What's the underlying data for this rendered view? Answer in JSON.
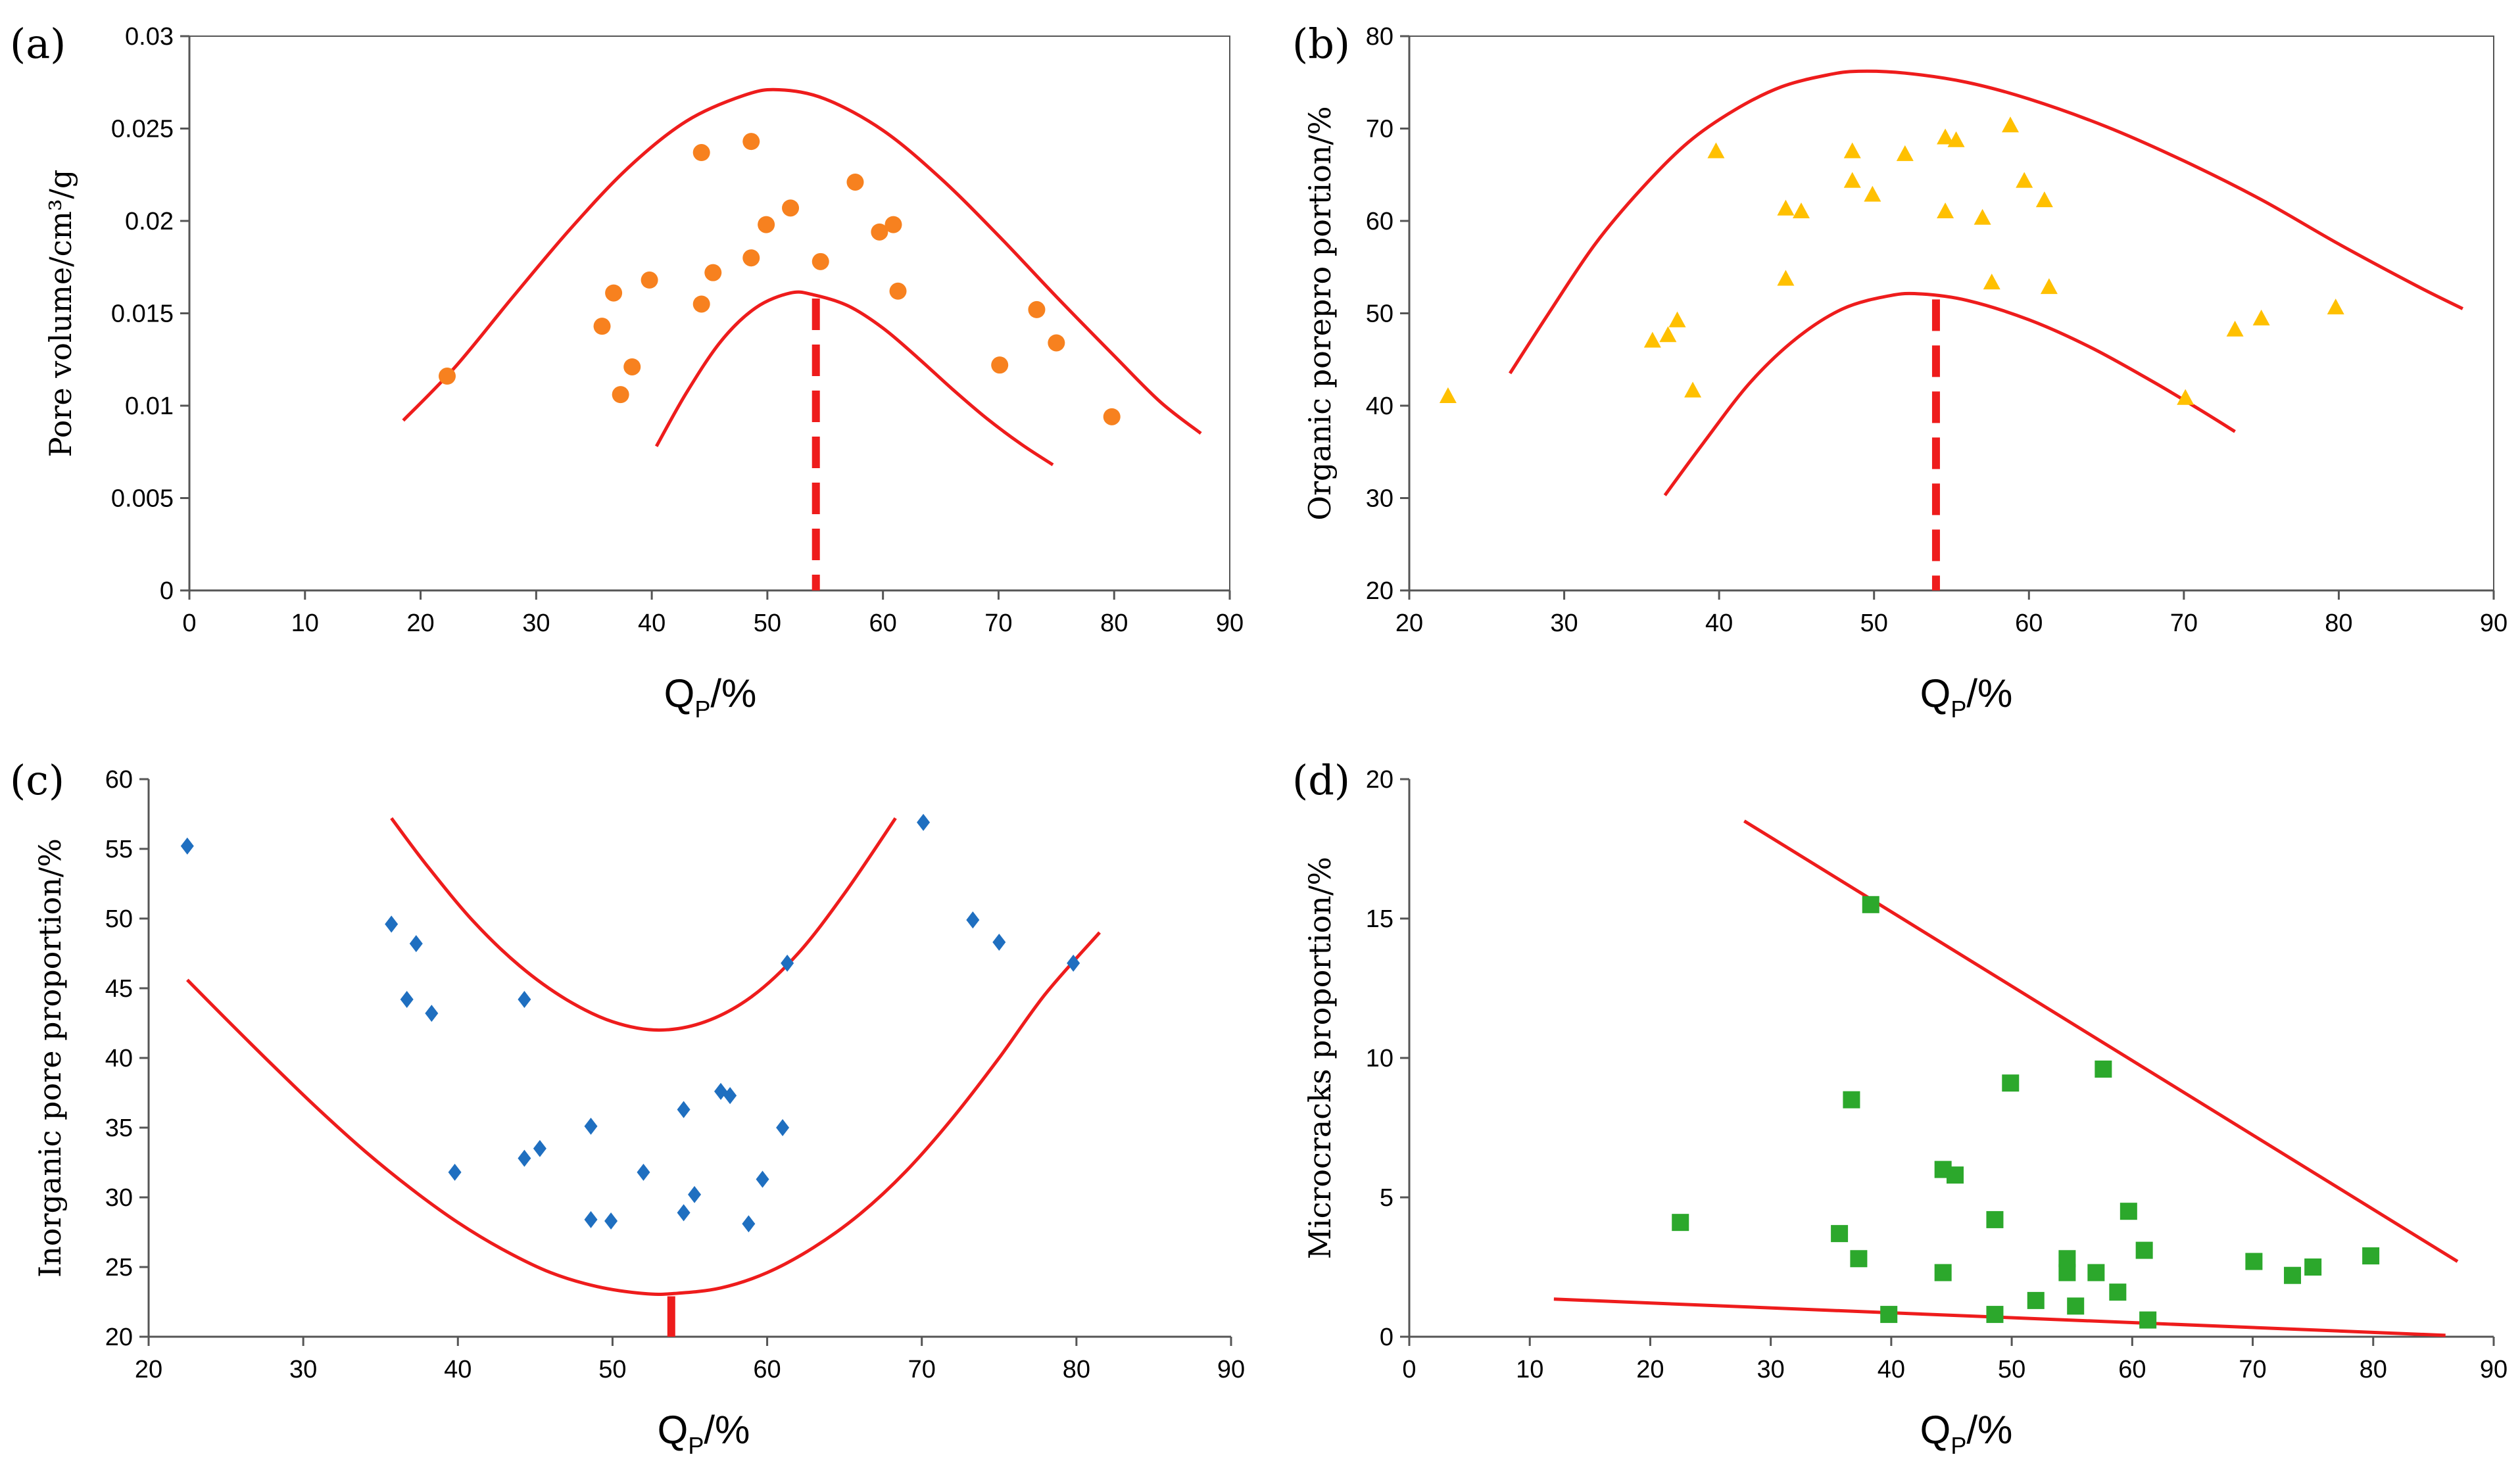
{
  "chart_data": [
    {
      "id": "a",
      "type": "scatter",
      "panel_label": "(a)",
      "ylabel": "Pore volume/cm³/g",
      "xlabel_main": "Q",
      "xlabel_sub": "P",
      "xlabel_unit": "/%",
      "xlim": [
        0,
        90
      ],
      "ylim": [
        0,
        0.03
      ],
      "xticks": [
        0,
        10,
        20,
        30,
        40,
        50,
        60,
        70,
        80,
        90
      ],
      "xtick_labels": [
        "0",
        "10",
        "20",
        "30",
        "40",
        "50",
        "60",
        "70",
        "80",
        "90"
      ],
      "yticks": [
        0,
        0.005,
        0.01,
        0.015,
        0.02,
        0.025,
        0.03
      ],
      "ytick_labels": [
        "0",
        "0.005",
        "0.01",
        "0.015",
        "0.02",
        "0.025",
        "0.03"
      ],
      "marker": "circle",
      "color": "#f7811f",
      "points": [
        [
          22.3,
          0.0116
        ],
        [
          35.7,
          0.0143
        ],
        [
          36.7,
          0.0161
        ],
        [
          37.3,
          0.0106
        ],
        [
          38.3,
          0.0121
        ],
        [
          39.8,
          0.0168
        ],
        [
          44.3,
          0.0237
        ],
        [
          44.3,
          0.0155
        ],
        [
          45.3,
          0.0172
        ],
        [
          48.6,
          0.018
        ],
        [
          48.6,
          0.0243
        ],
        [
          49.9,
          0.0198
        ],
        [
          52.0,
          0.0207
        ],
        [
          54.6,
          0.0178
        ],
        [
          57.6,
          0.0221
        ],
        [
          59.7,
          0.0194
        ],
        [
          60.9,
          0.0198
        ],
        [
          61.3,
          0.0162
        ],
        [
          70.1,
          0.0122
        ],
        [
          73.3,
          0.0152
        ],
        [
          75.0,
          0.0134
        ],
        [
          79.8,
          0.0094
        ]
      ],
      "envelope_upper": [
        [
          18.5,
          0.0092
        ],
        [
          23,
          0.0121
        ],
        [
          28,
          0.0159
        ],
        [
          33,
          0.0196
        ],
        [
          38,
          0.0229
        ],
        [
          43,
          0.0254
        ],
        [
          48,
          0.0268
        ],
        [
          51,
          0.0271
        ],
        [
          55,
          0.0266
        ],
        [
          60,
          0.0249
        ],
        [
          65,
          0.0223
        ],
        [
          70,
          0.0192
        ],
        [
          75,
          0.0159
        ],
        [
          80,
          0.0127
        ],
        [
          84,
          0.0102
        ],
        [
          87.5,
          0.0085
        ]
      ],
      "envelope_lower": [
        [
          40.4,
          0.0078
        ],
        [
          43,
          0.0107
        ],
        [
          46,
          0.0135
        ],
        [
          49,
          0.0153
        ],
        [
          52,
          0.0161
        ],
        [
          54,
          0.016
        ],
        [
          57,
          0.0154
        ],
        [
          60,
          0.0142
        ],
        [
          63,
          0.0126
        ],
        [
          66,
          0.0109
        ],
        [
          69,
          0.0093
        ],
        [
          72,
          0.0079
        ],
        [
          74.7,
          0.0068
        ]
      ],
      "optimum_x": 54.2,
      "optimum_y_range": [
        0,
        0.0158
      ],
      "optimum_style": "dashed"
    },
    {
      "id": "b",
      "type": "scatter",
      "panel_label": "(b)",
      "ylabel": "Organic porepro portion/%",
      "xlabel_main": "Q",
      "xlabel_sub": "P",
      "xlabel_unit": "/%",
      "xlim": [
        20,
        90
      ],
      "ylim": [
        20,
        80
      ],
      "xticks": [
        20,
        30,
        40,
        50,
        60,
        70,
        80,
        90
      ],
      "xtick_labels": [
        "20",
        "30",
        "40",
        "50",
        "60",
        "70",
        "80",
        "90"
      ],
      "yticks": [
        20,
        30,
        40,
        50,
        60,
        70,
        80
      ],
      "ytick_labels": [
        "20",
        "30",
        "40",
        "50",
        "60",
        "70",
        "80"
      ],
      "marker": "triangle",
      "color": "#ffc000",
      "points": [
        [
          22.5,
          41
        ],
        [
          35.7,
          47
        ],
        [
          36.7,
          47.6
        ],
        [
          37.3,
          49.2
        ],
        [
          38.3,
          41.6
        ],
        [
          39.8,
          67.5
        ],
        [
          44.3,
          61.3
        ],
        [
          44.3,
          53.7
        ],
        [
          45.3,
          61
        ],
        [
          48.6,
          67.5
        ],
        [
          48.6,
          64.3
        ],
        [
          49.9,
          62.8
        ],
        [
          52.0,
          67.2
        ],
        [
          54.6,
          69
        ],
        [
          55.3,
          68.7
        ],
        [
          54.6,
          61
        ],
        [
          57.0,
          60.3
        ],
        [
          57.6,
          53.3
        ],
        [
          58.8,
          70.3
        ],
        [
          59.7,
          64.3
        ],
        [
          61.0,
          62.2
        ],
        [
          61.3,
          52.8
        ],
        [
          70.1,
          40.8
        ],
        [
          73.3,
          48.2
        ],
        [
          75.0,
          49.4
        ],
        [
          79.8,
          50.6
        ]
      ],
      "envelope_upper": [
        [
          26.5,
          43.5
        ],
        [
          29,
          50
        ],
        [
          32,
          57.5
        ],
        [
          35,
          63.5
        ],
        [
          38,
          68.5
        ],
        [
          41,
          72
        ],
        [
          44,
          74.5
        ],
        [
          47,
          75.8
        ],
        [
          49,
          76.2
        ],
        [
          52,
          76
        ],
        [
          56,
          75
        ],
        [
          60,
          73.2
        ],
        [
          65,
          70.2
        ],
        [
          70,
          66.5
        ],
        [
          75,
          62.3
        ],
        [
          80,
          57.5
        ],
        [
          85,
          53
        ],
        [
          88,
          50.5
        ]
      ],
      "envelope_lower": [
        [
          36.5,
          30.3
        ],
        [
          39,
          36
        ],
        [
          42,
          42.5
        ],
        [
          45,
          47.3
        ],
        [
          48,
          50.5
        ],
        [
          51,
          51.9
        ],
        [
          53,
          52.1
        ],
        [
          56,
          51.4
        ],
        [
          60,
          49.3
        ],
        [
          64,
          46.3
        ],
        [
          68,
          42.6
        ],
        [
          71,
          39.6
        ],
        [
          73.3,
          37.2
        ]
      ],
      "optimum_x": 54,
      "optimum_y_range": [
        20,
        51.5
      ],
      "optimum_style": "dashed"
    },
    {
      "id": "c",
      "type": "scatter",
      "panel_label": "(c)",
      "ylabel": "Inorganic pore proportion/%",
      "xlabel_main": "Q",
      "xlabel_sub": "P",
      "xlabel_unit": "/%",
      "xlim": [
        20,
        90
      ],
      "ylim": [
        20,
        60
      ],
      "xticks": [
        20,
        30,
        40,
        50,
        60,
        70,
        80,
        90
      ],
      "xtick_labels": [
        "20",
        "30",
        "40",
        "50",
        "60",
        "70",
        "80",
        "90"
      ],
      "yticks": [
        20,
        25,
        30,
        35,
        40,
        45,
        50,
        55,
        60
      ],
      "ytick_labels": [
        "20",
        "25",
        "30",
        "35",
        "40",
        "45",
        "50",
        "55",
        "60"
      ],
      "marker": "diamond",
      "color": "#1f6fc0",
      "points": [
        [
          22.5,
          55.2
        ],
        [
          35.7,
          49.6
        ],
        [
          36.7,
          44.2
        ],
        [
          37.3,
          48.2
        ],
        [
          38.3,
          43.2
        ],
        [
          39.8,
          31.8
        ],
        [
          44.3,
          44.2
        ],
        [
          44.3,
          32.8
        ],
        [
          45.3,
          33.5
        ],
        [
          48.6,
          35.1
        ],
        [
          48.6,
          28.4
        ],
        [
          49.9,
          28.3
        ],
        [
          52.0,
          31.8
        ],
        [
          54.6,
          36.3
        ],
        [
          54.6,
          28.9
        ],
        [
          55.3,
          30.2
        ],
        [
          57.0,
          37.6
        ],
        [
          57.6,
          37.3
        ],
        [
          58.8,
          28.1
        ],
        [
          59.7,
          31.3
        ],
        [
          61.0,
          35
        ],
        [
          61.3,
          46.8
        ],
        [
          70.1,
          56.9
        ],
        [
          73.3,
          49.9
        ],
        [
          75.0,
          48.3
        ],
        [
          79.8,
          46.8
        ]
      ],
      "envelope_upper": [
        [
          35.7,
          57.2
        ],
        [
          38,
          53.8
        ],
        [
          41,
          49.8
        ],
        [
          44,
          46.6
        ],
        [
          47,
          44.2
        ],
        [
          50,
          42.6
        ],
        [
          53,
          42
        ],
        [
          56,
          42.6
        ],
        [
          59,
          44.4
        ],
        [
          62,
          47.5
        ],
        [
          65,
          51.8
        ],
        [
          68.3,
          57.2
        ]
      ],
      "envelope_lower": [
        [
          22.5,
          45.6
        ],
        [
          25,
          42.8
        ],
        [
          28,
          39.5
        ],
        [
          31,
          36.3
        ],
        [
          34,
          33.3
        ],
        [
          37,
          30.6
        ],
        [
          40,
          28.2
        ],
        [
          43,
          26.2
        ],
        [
          46,
          24.6
        ],
        [
          49,
          23.6
        ],
        [
          52,
          23.1
        ],
        [
          54,
          23.1
        ],
        [
          57,
          23.5
        ],
        [
          60,
          24.6
        ],
        [
          63,
          26.4
        ],
        [
          66,
          28.8
        ],
        [
          69,
          31.9
        ],
        [
          72,
          35.7
        ],
        [
          75,
          40
        ],
        [
          78,
          44.6
        ],
        [
          81.5,
          49
        ]
      ],
      "optimum_x": 53.8,
      "optimum_y_range": [
        20,
        22.9
      ],
      "optimum_style": "solid"
    },
    {
      "id": "d",
      "type": "scatter",
      "panel_label": "(d)",
      "ylabel": "Microcracks proportion/%",
      "xlabel_main": "Q",
      "xlabel_sub": "P",
      "xlabel_unit": "/%",
      "xlim": [
        0,
        90
      ],
      "ylim": [
        0,
        20
      ],
      "xticks": [
        0,
        10,
        20,
        30,
        40,
        50,
        60,
        70,
        80,
        90
      ],
      "xtick_labels": [
        "0",
        "10",
        "20",
        "30",
        "40",
        "50",
        "60",
        "70",
        "80",
        "90"
      ],
      "yticks": [
        0,
        5,
        10,
        15,
        20
      ],
      "ytick_labels": [
        "0",
        "5",
        "10",
        "15",
        "20"
      ],
      "marker": "square",
      "color": "#2ca82c",
      "points": [
        [
          22.5,
          4.1
        ],
        [
          35.7,
          3.7
        ],
        [
          36.7,
          8.5
        ],
        [
          37.3,
          2.8
        ],
        [
          38.3,
          15.5
        ],
        [
          39.8,
          0.8
        ],
        [
          44.3,
          6
        ],
        [
          44.3,
          2.3
        ],
        [
          45.3,
          5.8
        ],
        [
          48.6,
          4.2
        ],
        [
          48.6,
          0.8
        ],
        [
          49.9,
          9.1
        ],
        [
          52.0,
          1.3
        ],
        [
          54.6,
          2.8
        ],
        [
          54.6,
          2.3
        ],
        [
          55.3,
          1.1
        ],
        [
          57.0,
          2.3
        ],
        [
          57.6,
          9.6
        ],
        [
          58.8,
          1.6
        ],
        [
          59.7,
          4.5
        ],
        [
          61.0,
          3.1
        ],
        [
          61.3,
          0.6
        ],
        [
          70.1,
          2.7
        ],
        [
          73.3,
          2.2
        ],
        [
          75.0,
          2.5
        ],
        [
          79.8,
          2.9
        ]
      ],
      "envelope_upper": [
        [
          27.8,
          18.5
        ],
        [
          87,
          2.7
        ]
      ],
      "envelope_lower": [
        [
          12,
          1.35
        ],
        [
          86,
          0.05
        ]
      ]
    }
  ]
}
